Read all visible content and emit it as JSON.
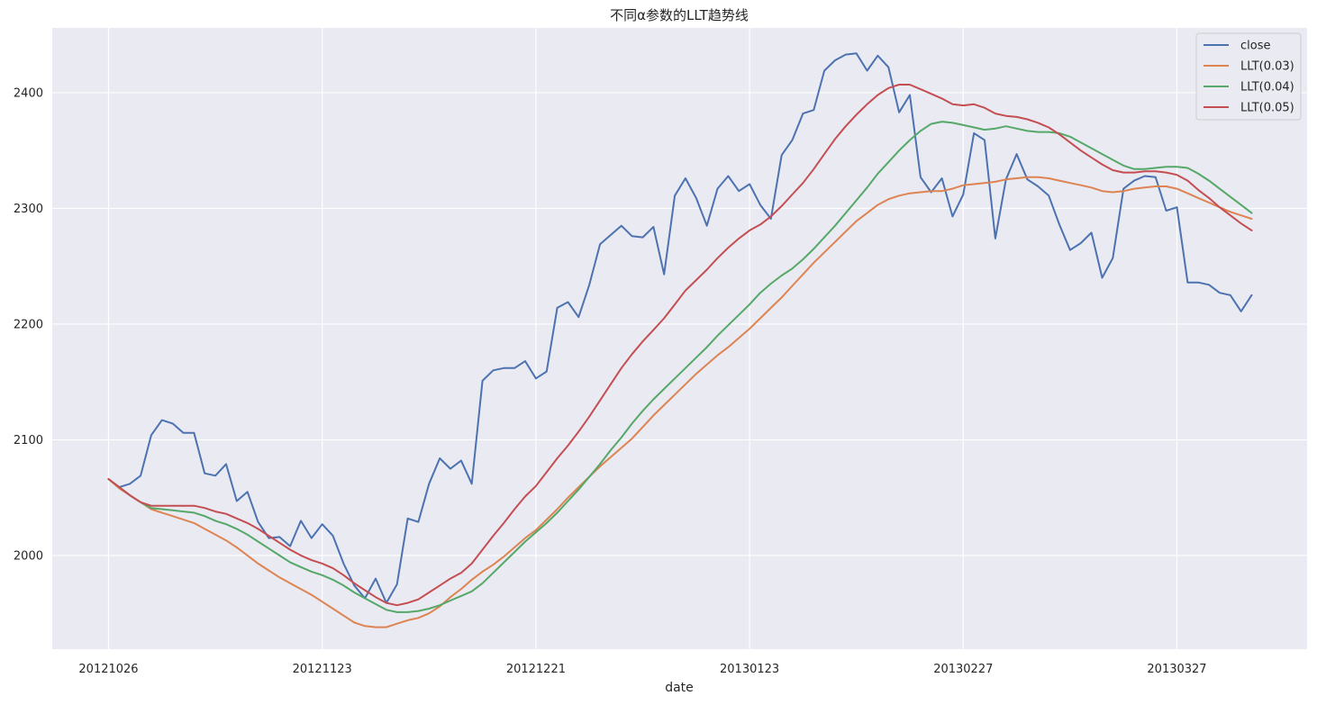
{
  "chart_data": {
    "type": "line",
    "title": "不同α参数的LLT趋势线",
    "xlabel": "date",
    "ylabel": "",
    "ylim": [
      1919,
      2456
    ],
    "yticks": [
      2000,
      2100,
      2200,
      2300,
      2400
    ],
    "xtick_labels": [
      "20121026",
      "20121123",
      "20121221",
      "20130123",
      "20130227",
      "20130327"
    ],
    "xtick_positions": [
      0,
      20,
      40,
      60,
      80,
      100
    ],
    "grid": true,
    "legend_position": "top-right",
    "x_count": 108,
    "colors": {
      "background": "#eaeaf2",
      "grid": "#ffffff",
      "close": "#4c72b0",
      "llt003": "#dd8452",
      "llt004": "#55a868",
      "llt005": "#c44e52"
    },
    "series": [
      {
        "name": "close",
        "color": "#4c72b0",
        "values": [
          2066,
          2059,
          2062,
          2069,
          2104,
          2117,
          2114,
          2106,
          2106,
          2071,
          2069,
          2079,
          2047,
          2055,
          2029,
          2015,
          2016,
          2008,
          2030,
          2015,
          2027,
          2017,
          1993,
          1974,
          1963,
          1980,
          1959,
          1975,
          2032,
          2029,
          2062,
          2084,
          2075,
          2082,
          2062,
          2151,
          2160,
          2162,
          2162,
          2168,
          2153,
          2159,
          2214,
          2219,
          2206,
          2234,
          2269,
          2277,
          2285,
          2276,
          2275,
          2284,
          2243,
          2311,
          2326,
          2309,
          2285,
          2317,
          2328,
          2315,
          2321,
          2303,
          2291,
          2346,
          2359,
          2382,
          2385,
          2419,
          2428,
          2433,
          2434,
          2419,
          2432,
          2422,
          2383,
          2398,
          2327,
          2314,
          2326,
          2293,
          2312,
          2365,
          2359,
          2274,
          2325,
          2347,
          2325,
          2319,
          2311,
          2286,
          2264,
          2270,
          2279,
          2240,
          2257,
          2317,
          2324,
          2328,
          2327,
          2298,
          2301,
          2236,
          2236,
          2234,
          2227,
          2225,
          2211,
          2225
        ]
      },
      {
        "name": "LLT(0.03)",
        "color": "#dd8452",
        "values": [
          2066,
          2058,
          2052,
          2046,
          2040,
          2037,
          2034,
          2031,
          2028,
          2023,
          2018,
          2013,
          2007,
          2000,
          1993,
          1987,
          1981,
          1976,
          1971,
          1966,
          1960,
          1954,
          1948,
          1942,
          1939,
          1938,
          1938,
          1941,
          1944,
          1946,
          1950,
          1956,
          1964,
          1971,
          1979,
          1986,
          1992,
          1999,
          2007,
          2015,
          2022,
          2031,
          2040,
          2050,
          2059,
          2068,
          2077,
          2085,
          2093,
          2101,
          2111,
          2121,
          2130,
          2139,
          2148,
          2157,
          2165,
          2173,
          2180,
          2188,
          2196,
          2205,
          2214,
          2223,
          2233,
          2243,
          2253,
          2262,
          2271,
          2280,
          2289,
          2296,
          2303,
          2308,
          2311,
          2313,
          2314,
          2315,
          2315,
          2317,
          2320,
          2321,
          2322,
          2323,
          2325,
          2326,
          2327,
          2327,
          2326,
          2324,
          2322,
          2320,
          2318,
          2315,
          2314,
          2315,
          2317,
          2318,
          2319,
          2319,
          2317,
          2313,
          2309,
          2305,
          2301,
          2297,
          2294,
          2291
        ]
      },
      {
        "name": "LLT(0.04)",
        "color": "#55a868",
        "values": [
          2066,
          2059,
          2052,
          2046,
          2041,
          2040,
          2039,
          2038,
          2037,
          2034,
          2030,
          2027,
          2023,
          2018,
          2012,
          2006,
          2000,
          1994,
          1990,
          1986,
          1983,
          1979,
          1974,
          1968,
          1963,
          1958,
          1953,
          1951,
          1951,
          1952,
          1954,
          1957,
          1961,
          1965,
          1969,
          1976,
          1985,
          1994,
          2003,
          2012,
          2020,
          2028,
          2037,
          2047,
          2057,
          2068,
          2079,
          2091,
          2102,
          2114,
          2125,
          2135,
          2144,
          2153,
          2162,
          2171,
          2180,
          2190,
          2199,
          2208,
          2217,
          2227,
          2235,
          2242,
          2248,
          2256,
          2265,
          2275,
          2285,
          2296,
          2307,
          2318,
          2330,
          2340,
          2350,
          2359,
          2367,
          2373,
          2375,
          2374,
          2372,
          2370,
          2368,
          2369,
          2371,
          2369,
          2367,
          2366,
          2366,
          2365,
          2362,
          2357,
          2352,
          2347,
          2342,
          2337,
          2334,
          2334,
          2335,
          2336,
          2336,
          2335,
          2330,
          2324,
          2317,
          2310,
          2303,
          2296
        ]
      },
      {
        "name": "LLT(0.05)",
        "color": "#c44e52",
        "values": [
          2066,
          2059,
          2052,
          2046,
          2043,
          2043,
          2043,
          2043,
          2043,
          2041,
          2038,
          2036,
          2032,
          2028,
          2023,
          2017,
          2011,
          2005,
          2000,
          1996,
          1993,
          1989,
          1983,
          1976,
          1970,
          1964,
          1959,
          1957,
          1959,
          1962,
          1968,
          1974,
          1980,
          1985,
          1993,
          2005,
          2017,
          2028,
          2040,
          2051,
          2060,
          2072,
          2084,
          2095,
          2107,
          2120,
          2134,
          2148,
          2162,
          2174,
          2185,
          2195,
          2205,
          2217,
          2229,
          2238,
          2247,
          2257,
          2266,
          2274,
          2281,
          2286,
          2293,
          2302,
          2312,
          2322,
          2334,
          2347,
          2360,
          2371,
          2381,
          2390,
          2398,
          2404,
          2407,
          2407,
          2403,
          2399,
          2395,
          2390,
          2389,
          2390,
          2387,
          2382,
          2380,
          2379,
          2377,
          2374,
          2370,
          2364,
          2357,
          2350,
          2344,
          2338,
          2333,
          2331,
          2331,
          2332,
          2332,
          2331,
          2329,
          2324,
          2316,
          2309,
          2301,
          2294,
          2287,
          2281
        ]
      }
    ]
  }
}
